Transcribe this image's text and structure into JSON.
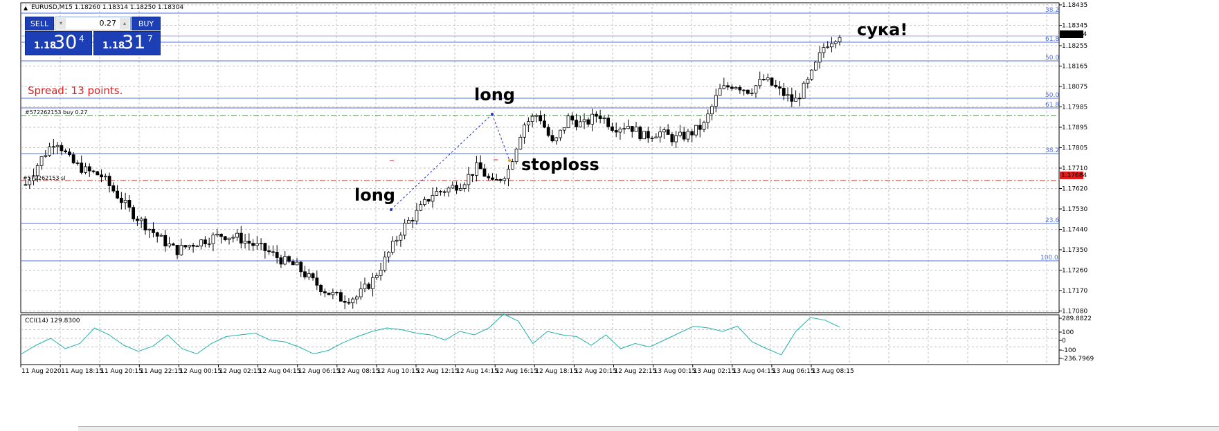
{
  "window": {
    "symbol_title": "EURUSD,M15  1.18260 1.18314 1.18250 1.18304",
    "collapse_glyph": "▲"
  },
  "trade_panel": {
    "sell_label": "SELL",
    "buy_label": "BUY",
    "lot_value": "0.27",
    "spin_down": "▾",
    "spin_up": "▴",
    "sell_price_small": "1.18",
    "sell_price_big": "30",
    "sell_price_sup": "4",
    "buy_price_small": "1.18",
    "buy_price_big": "31",
    "buy_price_sup": "7"
  },
  "spread_text": "Spread: 13 points.",
  "order_line_label": "#572262153 buy 0.27",
  "sl_line_label": "#572262153 sl",
  "annotations": {
    "long1": "long",
    "long2": "long",
    "stoploss": "stoploss",
    "exclaim": "сука!"
  },
  "price_axis": {
    "ticks": [
      "1.18435",
      "1.18345",
      "1.18255",
      "1.18165",
      "1.18075",
      "1.17985",
      "1.17895",
      "1.17805",
      "1.17710",
      "1.17620",
      "1.17530",
      "1.17440",
      "1.17350",
      "1.17260",
      "1.17170",
      "1.17080"
    ],
    "current_price": "1.18304",
    "sl_price": "1.17684"
  },
  "fibo_levels_upper": [
    "38.2",
    "61.8",
    "50.0",
    "50.0",
    "61.8",
    "38.2",
    "23.6",
    "100.0"
  ],
  "indicator": {
    "title": "CCI(14) 129.8300",
    "axis_labels": [
      "289.8822",
      "100",
      "0",
      "-100",
      "-236.7969"
    ]
  },
  "time_axis": [
    "11 Aug 2020",
    "11 Aug 18:15",
    "11 Aug 20:15",
    "11 Aug 22:15",
    "12 Aug 00:15",
    "12 Aug 02:15",
    "12 Aug 04:15",
    "12 Aug 06:15",
    "12 Aug 08:15",
    "12 Aug 10:15",
    "12 Aug 12:15",
    "12 Aug 14:15",
    "12 Aug 16:15",
    "12 Aug 18:15",
    "12 Aug 20:15",
    "12 Aug 22:15",
    "13 Aug 00:15",
    "13 Aug 02:15",
    "13 Aug 04:15",
    "13 Aug 06:15",
    "13 Aug 08:15"
  ],
  "colors": {
    "bull_candle": "#ffffff",
    "bear_candle": "#000000",
    "fibo_line": "#4d6fe6",
    "order_line": "#2e9a2e",
    "sl_line": "#e21b1b",
    "cci_line": "#20b2aa",
    "grid": "#c0c0c0"
  },
  "chart_data": {
    "type": "candlestick",
    "symbol": "EURUSD",
    "timeframe": "M15",
    "close_path": [
      1.1764,
      1.1775,
      1.1784,
      1.1774,
      1.177,
      1.1768,
      1.176,
      1.1752,
      1.1746,
      1.174,
      1.1735,
      1.1738,
      1.174,
      1.1742,
      1.1741,
      1.1738,
      1.1735,
      1.1731,
      1.1728,
      1.1722,
      1.1717,
      1.1714,
      1.1715,
      1.1722,
      1.1733,
      1.1745,
      1.1752,
      1.176,
      1.1762,
      1.1765,
      1.1772,
      1.1764,
      1.177,
      1.179,
      1.1795,
      1.1781,
      1.1793,
      1.179,
      1.1795,
      1.1789,
      1.179,
      1.1785,
      1.1787,
      1.1784,
      1.1786,
      1.179,
      1.1805,
      1.1808,
      1.1805,
      1.181,
      1.1805,
      1.18,
      1.181,
      1.1825,
      1.183
    ],
    "ylim": [
      1.1708,
      1.18435
    ],
    "cci": [
      -180,
      -80,
      0,
      -120,
      -60,
      120,
      40,
      -80,
      -150,
      -90,
      40,
      -120,
      -180,
      -60,
      20,
      40,
      60,
      -20,
      -40,
      -100,
      -180,
      -140,
      -50,
      20,
      80,
      120,
      100,
      60,
      40,
      -20,
      80,
      40,
      120,
      280,
      200,
      -60,
      80,
      40,
      20,
      -80,
      40,
      -120,
      -60,
      -100,
      -20,
      60,
      140,
      120,
      80,
      140,
      -40,
      -120,
      -190,
      80,
      240,
      210,
      130
    ]
  }
}
